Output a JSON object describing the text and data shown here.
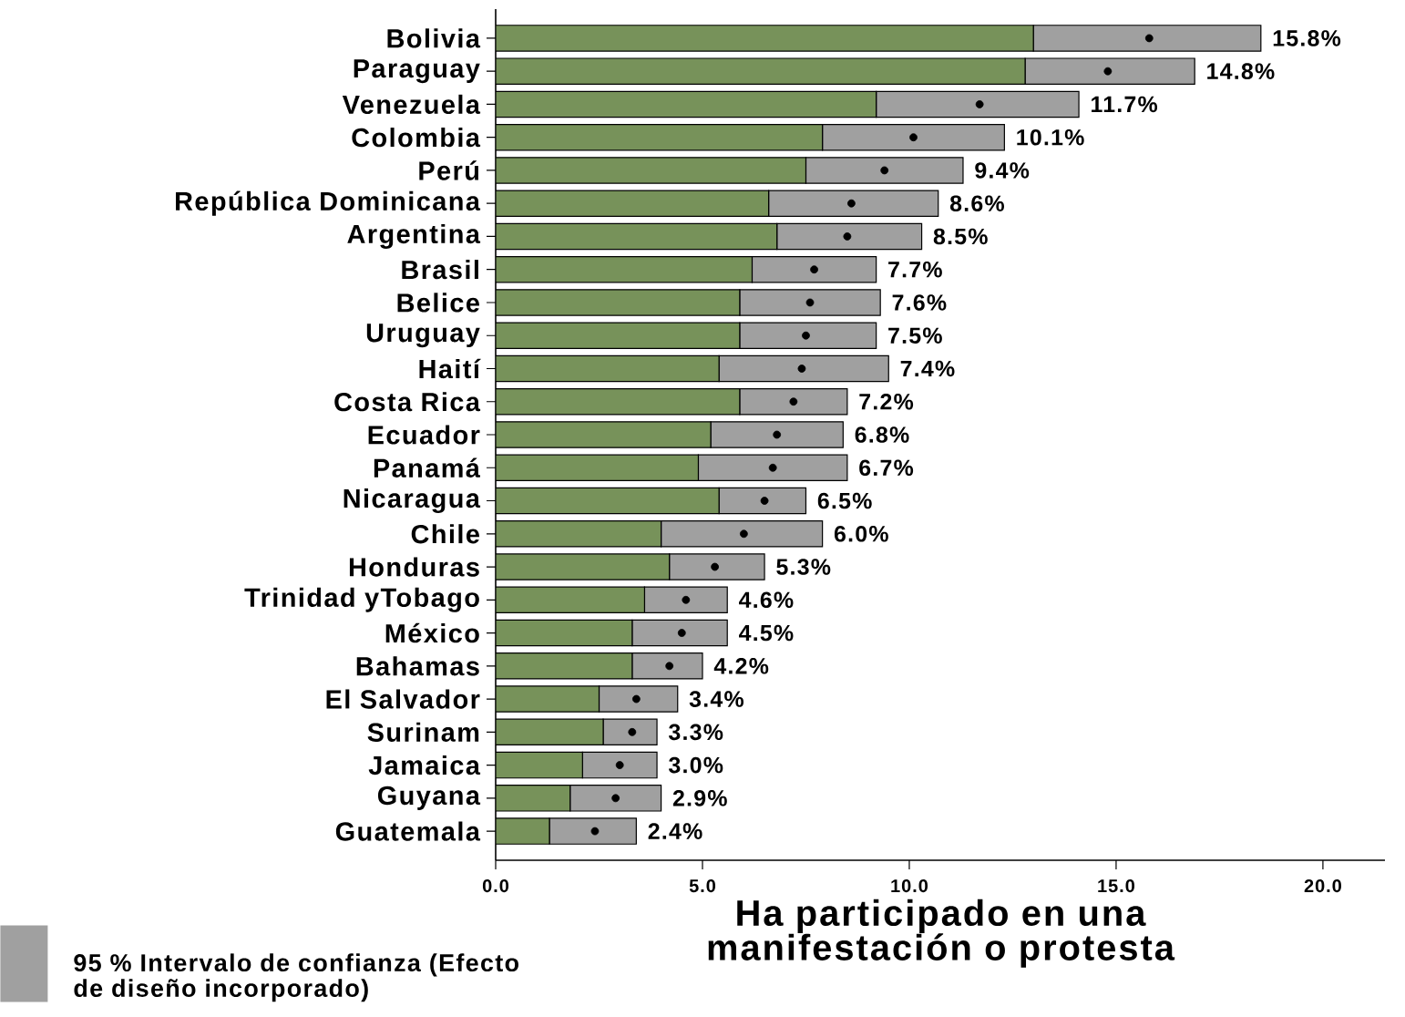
{
  "chart_data": {
    "type": "bar",
    "orientation": "horizontal",
    "stacked": true,
    "xlabel": "Ha participado en una manifestación o protesta",
    "categories": [
      "Bolivia",
      "Paraguay",
      "Venezuela",
      "Colombia",
      "Perú",
      "República Dominicana",
      "Argentina",
      "Brasil",
      "Belice",
      "Uruguay",
      "Haití",
      "Costa Rica",
      "Ecuador",
      "Panamá",
      "Nicaragua",
      "Chile",
      "Honduras",
      "Trinidad yTobago",
      "México",
      "Bahamas",
      "El Salvador",
      "Surinam",
      "Jamaica",
      "Guyana",
      "Guatemala"
    ],
    "series": [
      {
        "color": "#77925a",
        "values": [
          13.0,
          12.8,
          9.2,
          7.9,
          7.5,
          6.6,
          6.8,
          6.2,
          5.9,
          5.9,
          5.4,
          5.9,
          5.2,
          4.9,
          5.4,
          4.0,
          4.2,
          3.6,
          3.3,
          3.3,
          2.5,
          2.6,
          2.1,
          1.8,
          1.3
        ]
      },
      {
        "name": "95 % Intervalo de confianza (Efecto de diseño incorporado)",
        "color": "#a0a0a0",
        "values": [
          5.5,
          4.1,
          4.9,
          4.4,
          3.8,
          4.1,
          3.5,
          3.0,
          3.4,
          3.3,
          4.1,
          2.6,
          3.2,
          3.6,
          2.1,
          3.9,
          2.3,
          2.0,
          2.3,
          1.7,
          1.9,
          1.3,
          1.8,
          2.2,
          2.1
        ]
      },
      {
        "type": "scatter",
        "marker": "circle",
        "color": "#000000",
        "x": [
          "Bolivia",
          "Paraguay",
          "Venezuela",
          "Colombia",
          "Perú",
          "República Dominicana",
          "Argentina",
          "Brasil",
          "Belice",
          "Uruguay",
          "Haití",
          "Costa Rica",
          "Ecuador",
          "Panamá",
          "Nicaragua",
          "Chile",
          "Honduras",
          "Trinidad yTobago",
          "México",
          "Bahamas",
          "El Salvador",
          "Surinam",
          "Jamaica",
          "Guyana",
          "Guatemala"
        ],
        "values": [
          15.8,
          14.8,
          11.7,
          10.1,
          9.4,
          8.6,
          8.5,
          7.7,
          7.6,
          7.5,
          7.4,
          7.2,
          6.8,
          6.7,
          6.5,
          6.0,
          5.3,
          4.6,
          4.5,
          4.2,
          3.4,
          3.3,
          3.0,
          2.9,
          2.4
        ]
      }
    ],
    "annotations": [
      {
        "text": "15.8%",
        "x": 18.5,
        "y": "Bolivia"
      },
      {
        "text": "14.8%",
        "x": 16.9,
        "y": "Paraguay"
      },
      {
        "text": "11.7%",
        "x": 14.1,
        "y": "Venezuela"
      },
      {
        "text": "10.1%",
        "x": 12.3,
        "y": "Colombia"
      },
      {
        "text": "9.4%",
        "x": 11.3,
        "y": "Perú"
      },
      {
        "text": "8.6%",
        "x": 10.7,
        "y": "República Dominicana"
      },
      {
        "text": "8.5%",
        "x": 10.3,
        "y": "Argentina"
      },
      {
        "text": "7.7%",
        "x": 9.2,
        "y": "Brasil"
      },
      {
        "text": "7.6%",
        "x": 9.3,
        "y": "Belice"
      },
      {
        "text": "7.5%",
        "x": 9.2,
        "y": "Uruguay"
      },
      {
        "text": "7.4%",
        "x": 9.5,
        "y": "Haití"
      },
      {
        "text": "7.2%",
        "x": 8.5,
        "y": "Costa Rica"
      },
      {
        "text": "6.8%",
        "x": 8.4,
        "y": "Ecuador"
      },
      {
        "text": "6.7%",
        "x": 8.5,
        "y": "Panamá"
      },
      {
        "text": "6.5%",
        "x": 7.5,
        "y": "Nicaragua"
      },
      {
        "text": "6.0%",
        "x": 7.9,
        "y": "Chile"
      },
      {
        "text": "5.3%",
        "x": 6.5,
        "y": "Honduras"
      },
      {
        "text": "4.6%",
        "x": 5.6,
        "y": "Trinidad yTobago"
      },
      {
        "text": "4.5%",
        "x": 5.6,
        "y": "México"
      },
      {
        "text": "4.2%",
        "x": 5.0,
        "y": "Bahamas"
      },
      {
        "text": "3.4%",
        "x": 4.4,
        "y": "El Salvador"
      },
      {
        "text": "3.3%",
        "x": 3.9,
        "y": "Surinam"
      },
      {
        "text": "3.0%",
        "x": 3.9,
        "y": "Jamaica"
      },
      {
        "text": "2.9%",
        "x": 4.0,
        "y": "Guyana"
      },
      {
        "text": "2.4%",
        "x": 3.4,
        "y": "Guatemala"
      }
    ],
    "xlim": [
      0,
      21.5
    ],
    "xticks": [
      {
        "value": 0,
        "label": "0.0"
      },
      {
        "value": 5,
        "label": "5.0"
      },
      {
        "value": 10,
        "label": "10.0"
      },
      {
        "value": 15,
        "label": "15.0"
      },
      {
        "value": 20,
        "label": "20.0"
      }
    ],
    "grid": false,
    "legend": "bottom left"
  }
}
